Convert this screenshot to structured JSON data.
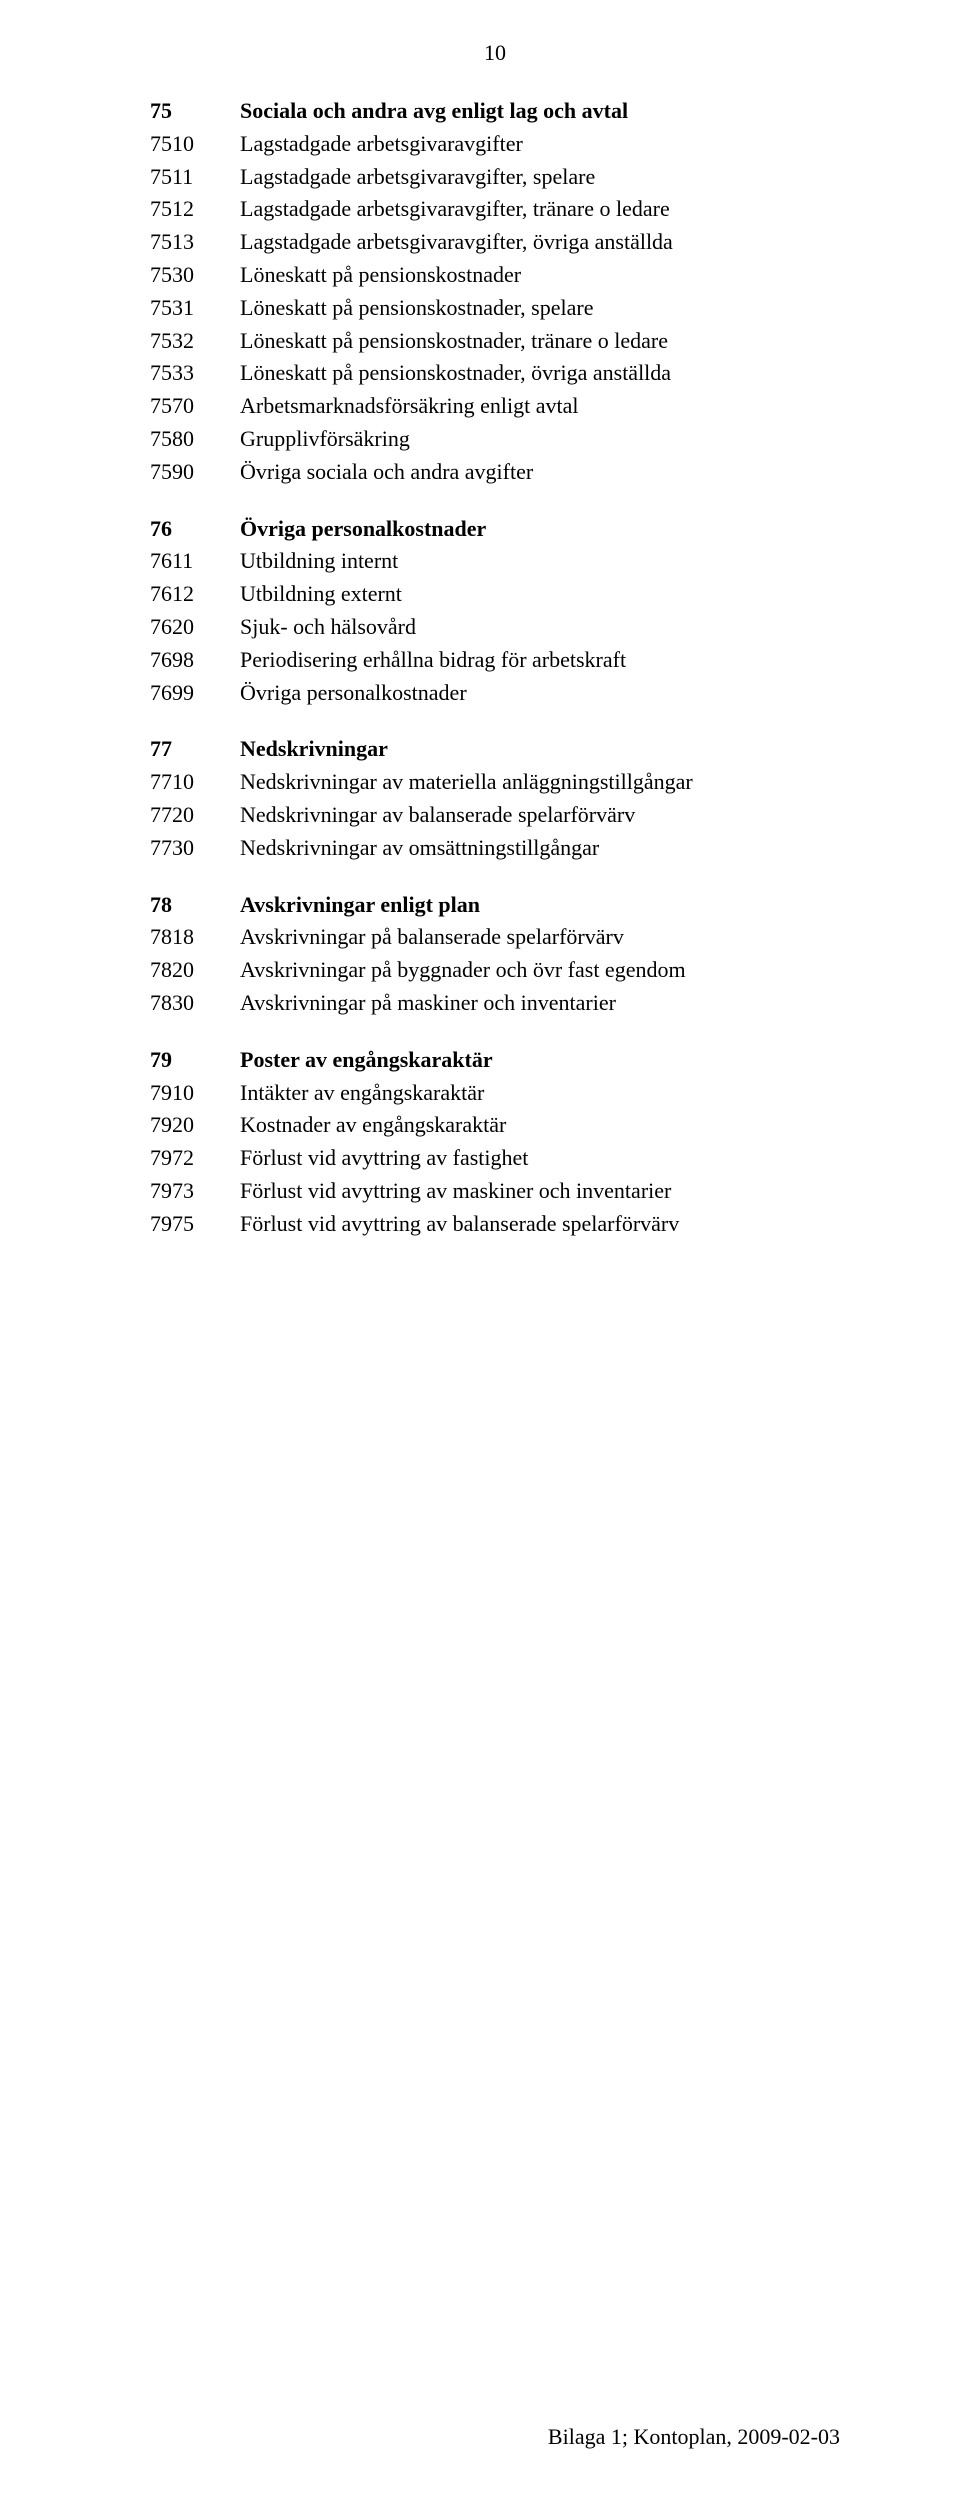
{
  "page_number": "10",
  "footer": "Bilaga 1; Kontoplan, 2009-02-03",
  "typography": {
    "font_family": "Times New Roman",
    "body_fontsize_pt": 16,
    "heading_weight": "bold",
    "text_color": "#000000",
    "background_color": "#ffffff"
  },
  "sections": [
    {
      "code": "75",
      "title": "Sociala och andra avg enligt lag och avtal",
      "rows": [
        {
          "code": "7510",
          "desc": "Lagstadgade arbetsgivaravgifter"
        },
        {
          "code": "7511",
          "desc": "Lagstadgade arbetsgivaravgifter, spelare"
        },
        {
          "code": "7512",
          "desc": "Lagstadgade arbetsgivaravgifter, tränare o ledare"
        },
        {
          "code": "7513",
          "desc": "Lagstadgade arbetsgivaravgifter, övriga anställda"
        },
        {
          "code": "7530",
          "desc": "Löneskatt på pensionskostnader"
        },
        {
          "code": "7531",
          "desc": "Löneskatt på pensionskostnader, spelare"
        },
        {
          "code": "7532",
          "desc": "Löneskatt på pensionskostnader, tränare o ledare"
        },
        {
          "code": "7533",
          "desc": "Löneskatt på pensionskostnader, övriga anställda"
        },
        {
          "code": "7570",
          "desc": "Arbetsmarknadsförsäkring enligt avtal"
        },
        {
          "code": "7580",
          "desc": "Grupplivförsäkring"
        },
        {
          "code": "7590",
          "desc": "Övriga sociala och andra avgifter"
        }
      ]
    },
    {
      "code": "76",
      "title": "Övriga personalkostnader",
      "rows": [
        {
          "code": "7611",
          "desc": "Utbildning internt"
        },
        {
          "code": "7612",
          "desc": "Utbildning externt"
        },
        {
          "code": "7620",
          "desc": "Sjuk- och hälsovård"
        },
        {
          "code": "7698",
          "desc": "Periodisering erhållna bidrag för arbetskraft"
        },
        {
          "code": "7699",
          "desc": "Övriga personalkostnader"
        }
      ]
    },
    {
      "code": "77",
      "title": "Nedskrivningar",
      "rows": [
        {
          "code": "7710",
          "desc": "Nedskrivningar av materiella anläggningstillgångar"
        },
        {
          "code": "7720",
          "desc": "Nedskrivningar av balanserade spelarförvärv"
        },
        {
          "code": "7730",
          "desc": "Nedskrivningar av omsättningstillgångar"
        }
      ]
    },
    {
      "code": "78",
      "title": "Avskrivningar enligt plan",
      "rows": [
        {
          "code": "7818",
          "desc": "Avskrivningar på balanserade spelarförvärv"
        },
        {
          "code": "7820",
          "desc": "Avskrivningar på byggnader och övr fast egendom"
        },
        {
          "code": "7830",
          "desc": "Avskrivningar på maskiner och inventarier"
        }
      ]
    },
    {
      "code": "79",
      "title": "Poster av engångskaraktär",
      "rows": [
        {
          "code": "7910",
          "desc": "Intäkter av engångskaraktär"
        },
        {
          "code": "7920",
          "desc": "Kostnader av engångskaraktär"
        },
        {
          "code": "7972",
          "desc": "Förlust vid avyttring av fastighet"
        },
        {
          "code": "7973",
          "desc": "Förlust vid avyttring av maskiner och inventarier"
        },
        {
          "code": "7975",
          "desc": "Förlust vid avyttring av balanserade spelarförvärv"
        }
      ]
    }
  ]
}
